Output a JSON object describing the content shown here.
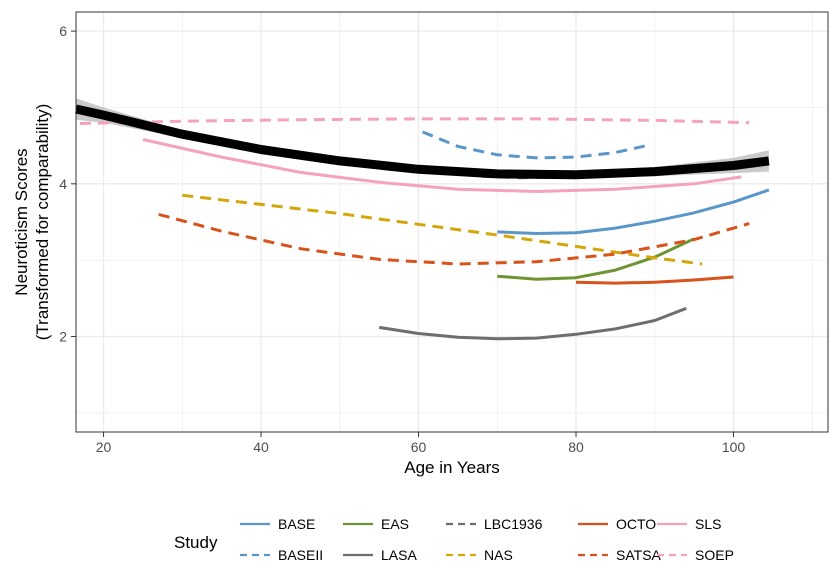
{
  "chart_data": {
    "type": "line",
    "title": "",
    "xlabel": "Age in Years",
    "ylabel": [
      "Neuroticism Scores",
      "(Transformed for comparability)"
    ],
    "xlim": [
      16.5,
      112
    ],
    "ylim": [
      0.75,
      6.25
    ],
    "x_ticks": [
      20,
      40,
      60,
      80,
      100
    ],
    "y_ticks": [
      2,
      4,
      6
    ],
    "grid": true,
    "legend": {
      "title": "Study",
      "position": "bottom"
    },
    "series": [
      {
        "name": "BASE",
        "color": "#5a96c8",
        "dash": "solid",
        "x": [
          70,
          75,
          80,
          85,
          90,
          95,
          100,
          104.5
        ],
        "y": [
          3.37,
          3.35,
          3.36,
          3.42,
          3.51,
          3.62,
          3.76,
          3.92
        ]
      },
      {
        "name": "BASEII",
        "color": "#5a96c8",
        "dash": "dashed",
        "x": [
          60.5,
          65,
          70,
          75,
          80,
          85,
          89
        ],
        "y": [
          4.68,
          4.49,
          4.38,
          4.34,
          4.35,
          4.41,
          4.5
        ]
      },
      {
        "name": "EAS",
        "color": "#6e9432",
        "dash": "solid",
        "x": [
          70,
          75,
          80,
          85,
          90,
          95
        ],
        "y": [
          2.79,
          2.75,
          2.77,
          2.87,
          3.04,
          3.28
        ]
      },
      {
        "name": "LASA",
        "color": "#6e6e6e",
        "dash": "solid",
        "x": [
          55,
          60,
          65,
          70,
          75,
          80,
          85,
          90,
          94
        ],
        "y": [
          2.12,
          2.04,
          1.99,
          1.97,
          1.98,
          2.03,
          2.1,
          2.21,
          2.37
        ]
      },
      {
        "name": "LBC1936",
        "color": "#6e6e6e",
        "dash": "dashed",
        "x": [
          68,
          73,
          78
        ],
        "y": [
          4.1,
          4.08,
          4.09
        ]
      },
      {
        "name": "NAS",
        "color": "#d4a60a",
        "dash": "dashed",
        "x": [
          30,
          40,
          50,
          60,
          70,
          80,
          90,
          96
        ],
        "y": [
          3.85,
          3.73,
          3.61,
          3.47,
          3.33,
          3.18,
          3.03,
          2.95
        ]
      },
      {
        "name": "OCTO",
        "color": "#d8521c",
        "dash": "solid",
        "x": [
          80,
          85,
          90,
          95,
          100
        ],
        "y": [
          2.71,
          2.7,
          2.71,
          2.74,
          2.78
        ]
      },
      {
        "name": "SATSA",
        "color": "#d8521c",
        "dash": "dashed",
        "x": [
          27,
          35,
          45,
          55,
          65,
          75,
          85,
          95,
          102
        ],
        "y": [
          3.6,
          3.38,
          3.15,
          3.01,
          2.95,
          2.98,
          3.08,
          3.27,
          3.48
        ]
      },
      {
        "name": "SLS",
        "color": "#f4a3b9",
        "dash": "solid",
        "x": [
          25,
          35,
          45,
          55,
          65,
          75,
          85,
          95,
          101
        ],
        "y": [
          4.58,
          4.35,
          4.15,
          4.02,
          3.93,
          3.9,
          3.93,
          4.0,
          4.09
        ]
      },
      {
        "name": "SOEP",
        "color": "#f4a3b9",
        "dash": "dashed",
        "x": [
          17,
          30,
          45,
          60,
          75,
          90,
          102
        ],
        "y": [
          4.79,
          4.82,
          4.84,
          4.85,
          4.85,
          4.83,
          4.8
        ]
      }
    ],
    "overall": {
      "color": "#000000",
      "ribbon_color": "#b8b8b8",
      "x": [
        16.5,
        20,
        30,
        40,
        50,
        60,
        70,
        80,
        90,
        100,
        104.5
      ],
      "y": [
        4.98,
        4.9,
        4.65,
        4.45,
        4.3,
        4.19,
        4.13,
        4.12,
        4.16,
        4.24,
        4.3
      ],
      "lower": [
        4.84,
        4.8,
        4.6,
        4.41,
        4.27,
        4.16,
        4.1,
        4.08,
        4.1,
        4.14,
        4.16
      ],
      "upper": [
        5.12,
        5.0,
        4.7,
        4.49,
        4.33,
        4.22,
        4.16,
        4.16,
        4.22,
        4.34,
        4.44
      ]
    }
  }
}
